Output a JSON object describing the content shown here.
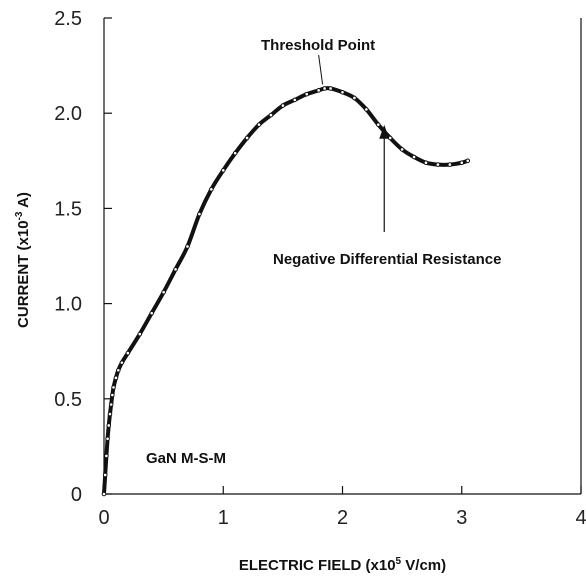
{
  "chart_data": {
    "type": "line",
    "title": "",
    "xlabel_parts": {
      "prefix": "ELECTRIC FIELD (x10",
      "sup": "5",
      "suffix": " V/cm)"
    },
    "ylabel_parts": {
      "prefix": "CURRENT (x10",
      "sup": "-3",
      "suffix": " A)"
    },
    "xlim": [
      0,
      4
    ],
    "ylim": [
      0,
      2.5
    ],
    "x_ticks": [
      "0",
      "1",
      "2",
      "3",
      "4"
    ],
    "y_ticks": [
      "0",
      "0.5",
      "1.0",
      "1.5",
      "2.0",
      "2.5"
    ],
    "grid": false,
    "legend": "none",
    "series": [
      {
        "color": "#111111",
        "x": [
          0,
          0.01,
          0.02,
          0.03,
          0.04,
          0.05,
          0.06,
          0.07,
          0.08,
          0.1,
          0.12,
          0.15,
          0.2,
          0.3,
          0.4,
          0.5,
          0.6,
          0.7,
          0.8,
          0.9,
          1.0,
          1.1,
          1.2,
          1.3,
          1.4,
          1.5,
          1.6,
          1.7,
          1.8,
          1.85,
          1.9,
          2.0,
          2.1,
          2.2,
          2.3,
          2.4,
          2.5,
          2.6,
          2.7,
          2.8,
          2.9,
          3.0,
          3.05
        ],
        "y": [
          0,
          0.1,
          0.2,
          0.29,
          0.36,
          0.42,
          0.47,
          0.52,
          0.56,
          0.61,
          0.65,
          0.69,
          0.74,
          0.84,
          0.95,
          1.06,
          1.18,
          1.3,
          1.47,
          1.6,
          1.7,
          1.79,
          1.87,
          1.94,
          1.99,
          2.04,
          2.07,
          2.1,
          2.12,
          2.13,
          2.13,
          2.11,
          2.08,
          2.02,
          1.94,
          1.87,
          1.81,
          1.77,
          1.74,
          1.73,
          1.73,
          1.74,
          1.75
        ]
      }
    ],
    "annotations": [
      {
        "text": "Threshold Point",
        "x": 1.85,
        "y": 2.13
      },
      {
        "text": "Negative Differential Resistance",
        "x": 2.35,
        "y": 1.95
      }
    ],
    "sample_label": "GaN M-S-M"
  }
}
